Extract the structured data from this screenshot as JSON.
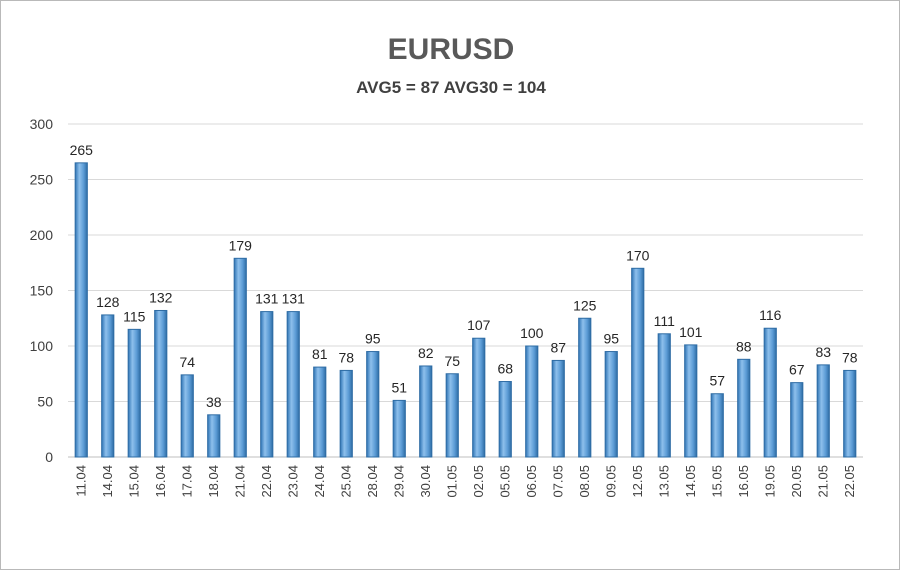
{
  "chart_data": {
    "type": "bar",
    "title": "EURUSD",
    "subtitle": "AVG5 = 87 AVG30 = 104",
    "xlabel": "",
    "ylabel": "",
    "ylim": [
      0,
      300
    ],
    "yticks": [
      0,
      50,
      100,
      150,
      200,
      250,
      300
    ],
    "grid": true,
    "legend": "none",
    "bar_color": "#5b9bd5",
    "bar_edge_color": "#2e6ca4",
    "categories": [
      "11.04",
      "14.04",
      "15.04",
      "16.04",
      "17.04",
      "18.04",
      "21.04",
      "22.04",
      "23.04",
      "24.04",
      "25.04",
      "28.04",
      "29.04",
      "30.04",
      "01.05",
      "02.05",
      "05.05",
      "06.05",
      "07.05",
      "08.05",
      "09.05",
      "12.05",
      "13.05",
      "14.05",
      "15.05",
      "16.05",
      "19.05",
      "20.05",
      "21.05",
      "22.05"
    ],
    "values": [
      265,
      128,
      115,
      132,
      74,
      38,
      179,
      131,
      131,
      81,
      78,
      95,
      51,
      82,
      75,
      107,
      68,
      100,
      87,
      125,
      95,
      170,
      111,
      101,
      57,
      88,
      116,
      67,
      83,
      78
    ]
  }
}
